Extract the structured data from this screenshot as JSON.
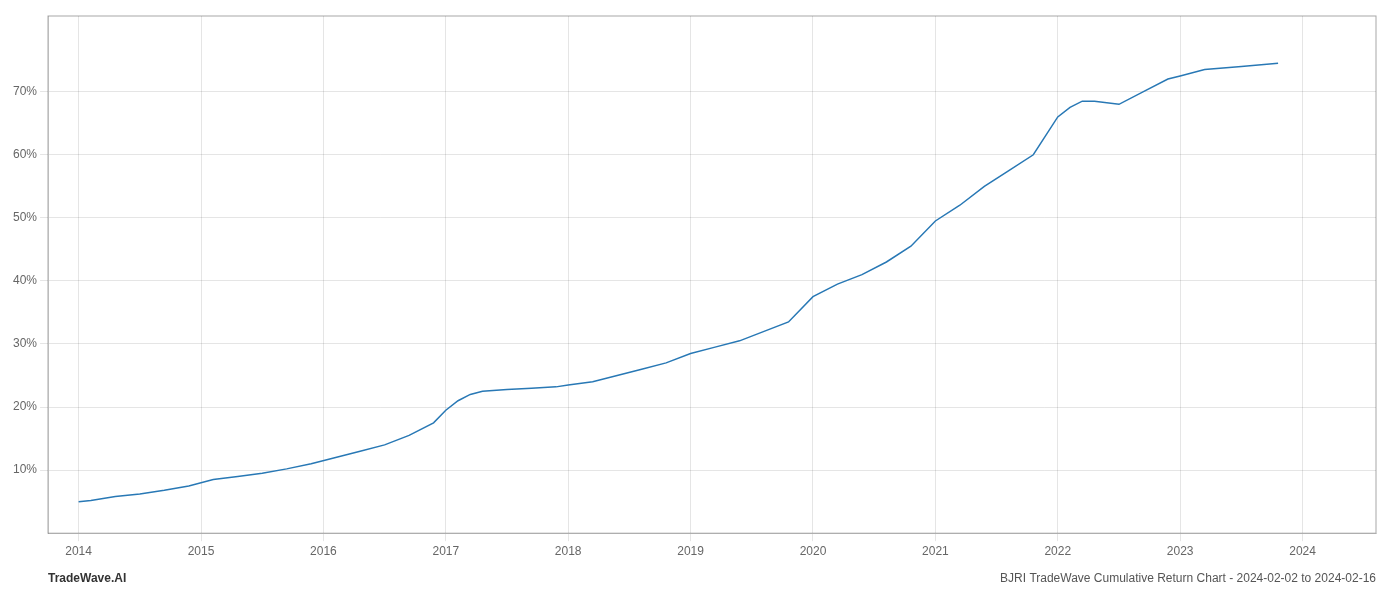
{
  "chart_data": {
    "type": "line",
    "title": "BJRI TradeWave Cumulative Return Chart - 2024-02-02 to 2024-02-16",
    "annotations": [
      "TradeWave.AI"
    ],
    "color": "#2878b5",
    "x": [
      2014.0,
      2014.1,
      2014.2,
      2014.3,
      2014.5,
      2014.7,
      2014.9,
      2015.1,
      2015.3,
      2015.5,
      2015.7,
      2015.9,
      2016.1,
      2016.3,
      2016.5,
      2016.7,
      2016.9,
      2017.0,
      2017.1,
      2017.2,
      2017.3,
      2017.5,
      2017.7,
      2017.9,
      2018.0,
      2018.2,
      2018.4,
      2018.6,
      2018.8,
      2019.0,
      2019.2,
      2019.4,
      2019.6,
      2019.8,
      2020.0,
      2020.2,
      2020.4,
      2020.6,
      2020.8,
      2021.0,
      2021.2,
      2021.4,
      2021.6,
      2021.8,
      2022.0,
      2022.1,
      2022.2,
      2022.3,
      2022.5,
      2022.7,
      2022.9,
      2023.0,
      2023.2,
      2023.5,
      2023.8
    ],
    "values": [
      5.0,
      5.2,
      5.5,
      5.8,
      6.2,
      6.8,
      7.5,
      8.5,
      9.0,
      9.5,
      10.2,
      11.0,
      12.0,
      13.0,
      14.0,
      15.5,
      17.5,
      19.5,
      21.0,
      22.0,
      22.5,
      22.8,
      23.0,
      23.2,
      23.5,
      24.0,
      25.0,
      26.0,
      27.0,
      28.5,
      29.5,
      30.5,
      32.0,
      33.5,
      37.5,
      39.5,
      41.0,
      43.0,
      45.5,
      49.5,
      52.0,
      55.0,
      57.5,
      60.0,
      66.0,
      67.5,
      68.5,
      68.5,
      68.0,
      70.0,
      72.0,
      72.5,
      73.5,
      74.0,
      74.5
    ],
    "xlim": [
      2013.75,
      2024.6
    ],
    "xticks": [
      2014,
      2015,
      2016,
      2017,
      2018,
      2019,
      2020,
      2021,
      2022,
      2023,
      2024
    ],
    "ylim": [
      0,
      82
    ],
    "yticks": [
      {
        "value": 10,
        "label": "10%"
      },
      {
        "value": 20,
        "label": "20%"
      },
      {
        "value": 30,
        "label": "30%"
      },
      {
        "value": 40,
        "label": "40%"
      },
      {
        "value": 50,
        "label": "50%"
      },
      {
        "value": 60,
        "label": "60%"
      },
      {
        "value": 70,
        "label": "70%"
      }
    ],
    "grid": true
  }
}
